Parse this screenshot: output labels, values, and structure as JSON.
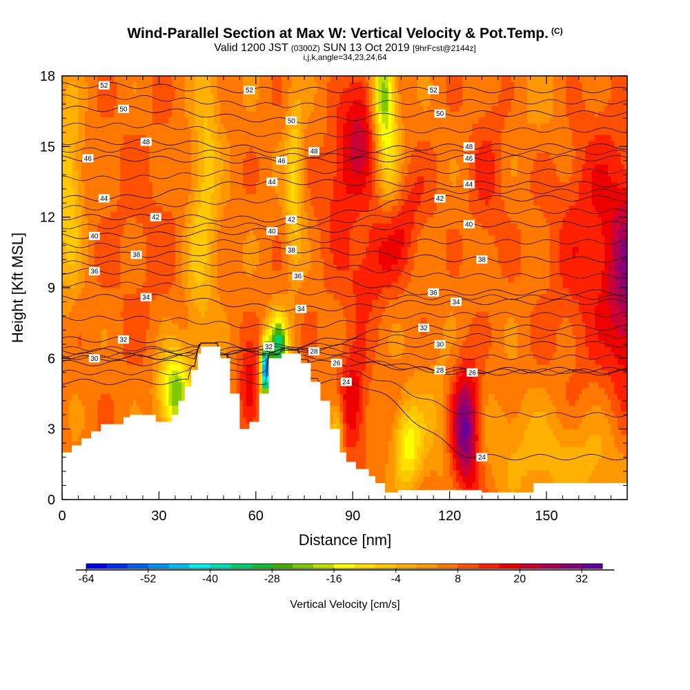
{
  "header": {
    "title": "Wind-Parallel Section at Max W: Vertical Velocity & Pot.Temp.",
    "copyright_mark": "(C)",
    "valid_prefix": "Valid 1200 JST",
    "valid_utc": "(0300Z)",
    "valid_date": "SUN 13 Oct 2019",
    "forecast_tag": "[9hrFcst@2144z]",
    "index_line": "i,j,k,angle=34,23,24,64"
  },
  "chart_data": {
    "type": "heatmap",
    "title": "Wind-Parallel Section at Max W: Vertical Velocity & Pot.Temp.",
    "xlabel": "Distance [nm]",
    "ylabel": "Height [Kft MSL]",
    "xlim": [
      0,
      175
    ],
    "ylim": [
      0,
      18
    ],
    "x_ticks": [
      0,
      30,
      60,
      90,
      120,
      150
    ],
    "y_ticks": [
      0,
      3,
      6,
      9,
      12,
      15,
      18
    ],
    "grid": false,
    "colorbar": {
      "label": "Vertical Velocity [cm/s]",
      "ticks": [
        -64,
        -52,
        -40,
        -28,
        -16,
        -4,
        8,
        20,
        32
      ],
      "min": -64,
      "max": 36,
      "step": 4,
      "colors": [
        "#0000f0",
        "#0030f0",
        "#0060f0",
        "#0090f0",
        "#00c0f0",
        "#00f0f0",
        "#00e0b0",
        "#00d070",
        "#10c030",
        "#40b000",
        "#80c800",
        "#c0e000",
        "#ffff00",
        "#ffe000",
        "#ffc800",
        "#ffb000",
        "#ff9800",
        "#ff7800",
        "#ff5000",
        "#ff2000",
        "#ee0000",
        "#cc0033",
        "#aa0055",
        "#880077",
        "#660099"
      ]
    },
    "terrain": [
      [
        0,
        2
      ],
      [
        3,
        2
      ],
      [
        3,
        2.3
      ],
      [
        6,
        2.3
      ],
      [
        6,
        2.6
      ],
      [
        9,
        2.6
      ],
      [
        9,
        2.9
      ],
      [
        12,
        2.9
      ],
      [
        12,
        3.2
      ],
      [
        19,
        3.2
      ],
      [
        19,
        3.5
      ],
      [
        21,
        3.5
      ],
      [
        21,
        3.6
      ],
      [
        29,
        3.6
      ],
      [
        29,
        3.3
      ],
      [
        34,
        3.3
      ],
      [
        34,
        3.6
      ],
      [
        36,
        3.6
      ],
      [
        36,
        4.2
      ],
      [
        38,
        4.2
      ],
      [
        38,
        4.8
      ],
      [
        40,
        4.8
      ],
      [
        40,
        5.5
      ],
      [
        42,
        5.5
      ],
      [
        42,
        6.2
      ],
      [
        43,
        6.2
      ],
      [
        43,
        6.5
      ],
      [
        49,
        6.5
      ],
      [
        49,
        6
      ],
      [
        52,
        6
      ],
      [
        52,
        4.5
      ],
      [
        55,
        4.5
      ],
      [
        55,
        3
      ],
      [
        58,
        3
      ],
      [
        58,
        3.3
      ],
      [
        61,
        3.3
      ],
      [
        61,
        4.5
      ],
      [
        64,
        4.5
      ],
      [
        64,
        6
      ],
      [
        68,
        6
      ],
      [
        68,
        6.2
      ],
      [
        74,
        6.2
      ],
      [
        74,
        5.8
      ],
      [
        77,
        5.8
      ],
      [
        77,
        5
      ],
      [
        80,
        5
      ],
      [
        80,
        4.2
      ],
      [
        83,
        4.2
      ],
      [
        83,
        3
      ],
      [
        86,
        3
      ],
      [
        86,
        2
      ],
      [
        88,
        2
      ],
      [
        88,
        1.6
      ],
      [
        91,
        1.6
      ],
      [
        91,
        1.3
      ],
      [
        95,
        1.3
      ],
      [
        95,
        1
      ],
      [
        97,
        1
      ],
      [
        97,
        0.7
      ],
      [
        100,
        0.7
      ],
      [
        100,
        0.3
      ],
      [
        104,
        0.3
      ],
      [
        104,
        0.4
      ],
      [
        130,
        0.4
      ],
      [
        130,
        0.3
      ],
      [
        146,
        0.3
      ],
      [
        146,
        0.7
      ],
      [
        175,
        0.7
      ]
    ],
    "theta_contours": [
      {
        "theta": 24,
        "label_points": [
          [
            88,
            5
          ],
          [
            130,
            1.8
          ]
        ]
      },
      {
        "theta": 26,
        "label_points": [
          [
            85,
            5.8
          ],
          [
            127,
            5.4
          ]
        ]
      },
      {
        "theta": 28,
        "label_points": [
          [
            78,
            6.3
          ],
          [
            117,
            5.5
          ]
        ]
      },
      {
        "theta": 30,
        "label_points": [
          [
            10,
            6
          ],
          [
            117,
            6.6
          ]
        ]
      },
      {
        "theta": 32,
        "label_points": [
          [
            19,
            6.8
          ],
          [
            64,
            6.5
          ],
          [
            112,
            7.3
          ]
        ]
      },
      {
        "theta": 34,
        "label_points": [
          [
            26,
            8.6
          ],
          [
            74,
            8.1
          ],
          [
            122,
            8.4
          ]
        ]
      },
      {
        "theta": 36,
        "label_points": [
          [
            10,
            9.7
          ],
          [
            73,
            9.5
          ],
          [
            115,
            8.8
          ]
        ]
      },
      {
        "theta": 38,
        "label_points": [
          [
            23,
            10.4
          ],
          [
            71,
            10.6
          ],
          [
            130,
            10.2
          ]
        ]
      },
      {
        "theta": 40,
        "label_points": [
          [
            10,
            11.2
          ],
          [
            65,
            11.4
          ],
          [
            126,
            11.7
          ]
        ]
      },
      {
        "theta": 42,
        "label_points": [
          [
            29,
            12
          ],
          [
            71,
            11.9
          ],
          [
            117,
            12.8
          ]
        ]
      },
      {
        "theta": 44,
        "label_points": [
          [
            13,
            12.8
          ],
          [
            65,
            13.5
          ],
          [
            126,
            13.4
          ]
        ]
      },
      {
        "theta": 46,
        "label_points": [
          [
            8,
            14.5
          ],
          [
            68,
            14.4
          ],
          [
            126,
            14.5
          ]
        ]
      },
      {
        "theta": 48,
        "label_points": [
          [
            26,
            15.2
          ],
          [
            78,
            14.8
          ],
          [
            126,
            15
          ]
        ]
      },
      {
        "theta": 50,
        "label_points": [
          [
            19,
            16.6
          ],
          [
            71,
            16.1
          ],
          [
            117,
            16.4
          ]
        ]
      },
      {
        "theta": 52,
        "label_points": [
          [
            13,
            17.6
          ],
          [
            58,
            17.4
          ],
          [
            115,
            17.4
          ]
        ]
      }
    ],
    "w_field": {
      "units": "cm/s",
      "background": 6,
      "blobs": [
        {
          "x": 92,
          "y": 15.5,
          "sx": 5,
          "sy": 2.8,
          "w": 16,
          "rot": -0.3
        },
        {
          "x": 100,
          "y": 10.8,
          "sx": 6,
          "sy": 2.2,
          "w": 12,
          "rot": -0.5
        },
        {
          "x": 125,
          "y": 3,
          "sx": 3,
          "sy": 1.8,
          "w": 28
        },
        {
          "x": 90,
          "y": 4.2,
          "sx": 3,
          "sy": 1.6,
          "w": 14
        },
        {
          "x": 58,
          "y": 4.5,
          "sx": 2.2,
          "sy": 1.3,
          "w": 14
        },
        {
          "x": 166,
          "y": 11,
          "sx": 10,
          "sy": 4,
          "w": 10
        },
        {
          "x": 175,
          "y": 9,
          "sx": 4,
          "sy": 3,
          "w": 16
        },
        {
          "x": 132,
          "y": 14,
          "sx": 4,
          "sy": 2.5,
          "w": 6
        },
        {
          "x": 25,
          "y": 11.5,
          "sx": 10,
          "sy": 4,
          "w": 3
        },
        {
          "x": 99,
          "y": 17.5,
          "sx": 2.5,
          "sy": 1.5,
          "w": -28
        },
        {
          "x": 101,
          "y": 15.5,
          "sx": 2.5,
          "sy": 2.5,
          "w": -16
        },
        {
          "x": 45,
          "y": 15,
          "sx": 3,
          "sy": 4,
          "w": -10
        },
        {
          "x": 42,
          "y": 10,
          "sx": 3,
          "sy": 3,
          "w": -8
        },
        {
          "x": 35,
          "y": 4.5,
          "sx": 3.5,
          "sy": 1.3,
          "w": -30
        },
        {
          "x": 67,
          "y": 6.5,
          "sx": 2,
          "sy": 0.9,
          "w": -40
        },
        {
          "x": 63,
          "y": 5.5,
          "sx": 1,
          "sy": 0.8,
          "w": -60
        },
        {
          "x": 72,
          "y": 13.5,
          "sx": 2,
          "sy": 2.5,
          "w": -15
        },
        {
          "x": 107,
          "y": 2.3,
          "sx": 3,
          "sy": 1.2,
          "w": -20
        },
        {
          "x": 85,
          "y": 2.8,
          "sx": 1.5,
          "sy": 1,
          "w": -18
        },
        {
          "x": 160,
          "y": 1.5,
          "sx": 12,
          "sy": 1.5,
          "w": -8
        },
        {
          "x": 140,
          "y": 2.5,
          "sx": 8,
          "sy": 1.5,
          "w": -5
        },
        {
          "x": 2,
          "y": 13,
          "sx": 3,
          "sy": 3,
          "w": -14
        },
        {
          "x": 115,
          "y": 3.5,
          "sx": 5,
          "sy": 2,
          "w": -5
        },
        {
          "x": 150,
          "y": 17,
          "sx": 8,
          "sy": 2,
          "w": -3
        }
      ]
    }
  }
}
